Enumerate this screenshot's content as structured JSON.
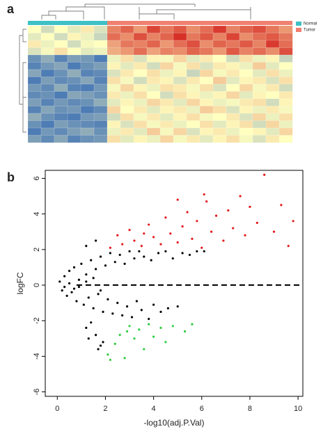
{
  "chart_data": [
    {
      "type": "heatmap",
      "label": "a",
      "colors": [
        "#4575b4",
        "#ffffbf",
        "#d73027"
      ],
      "limits": [
        -2,
        2
      ],
      "groups": [
        {
          "name": "Normal",
          "color": "#3ec1c4",
          "columns": 6
        },
        {
          "name": "Tumor",
          "color": "#f08070",
          "columns": 14
        }
      ],
      "values": [
        [
          0,
          -0.5,
          0,
          -0.3,
          0.2,
          -0.4,
          1.2,
          1.5,
          1.0,
          1.8,
          1.3,
          1.6,
          1.1,
          1.4,
          1.9,
          1.2,
          1.5,
          1.7,
          1.3,
          1.0
        ],
        [
          -0.3,
          0,
          -0.5,
          0.1,
          -0.2,
          -0.6,
          1.4,
          1.1,
          1.7,
          1.2,
          1.5,
          2.0,
          1.3,
          1.6,
          1.2,
          1.8,
          1.1,
          1.4,
          1.6,
          1.3
        ],
        [
          0.2,
          -0.2,
          0,
          -0.5,
          -0.1,
          0,
          0.9,
          1.3,
          1.2,
          1.5,
          1.0,
          1.4,
          1.7,
          1.1,
          1.5,
          1.3,
          1.6,
          1.2,
          1.9,
          1.4
        ],
        [
          -0.4,
          -0.1,
          0.3,
          0,
          -0.3,
          -0.2,
          0.8,
          1.0,
          1.4,
          0.9,
          1.2,
          1.1,
          1.5,
          1.3,
          1.0,
          1.6,
          1.2,
          1.4,
          1.1,
          1.7
        ],
        [
          -1.6,
          -1.2,
          -1.8,
          -1.4,
          -1.5,
          -1.9,
          -0.2,
          0.3,
          -0.4,
          0.1,
          -0.1,
          0.4,
          -0.3,
          0.2,
          0,
          -0.5,
          0.3,
          -0.2,
          0.1,
          -0.6
        ],
        [
          -1.8,
          -1.5,
          -1.3,
          -1.9,
          -1.6,
          -1.4,
          0.1,
          -0.3,
          0.2,
          -0.5,
          0.4,
          -0.1,
          0.3,
          -0.4,
          0.2,
          0.1,
          -0.2,
          0.5,
          -0.3,
          0
        ],
        [
          -1.3,
          -1.9,
          -1.6,
          -1.2,
          -1.8,
          -1.7,
          -0.4,
          0.2,
          0,
          0.3,
          -0.2,
          0.1,
          -0.6,
          0.4,
          -0.1,
          0.2,
          0,
          -0.3,
          0.3,
          -0.2
        ],
        [
          -1.9,
          -1.4,
          -1.7,
          -1.6,
          -1.3,
          -1.8,
          0.3,
          -0.1,
          -0.5,
          0.2,
          0.1,
          -0.4,
          0.2,
          0,
          0.5,
          -0.3,
          0.1,
          0.2,
          -0.4,
          0.3
        ],
        [
          -1.5,
          -1.7,
          -1.2,
          -1.8,
          -1.9,
          -1.5,
          -0.1,
          0.4,
          0.1,
          -0.2,
          0.3,
          0.2,
          -0.1,
          0.3,
          -0.4,
          0,
          0.4,
          -0.1,
          0.2,
          -0.5
        ],
        [
          -1.7,
          -1.6,
          -1.9,
          -1.3,
          -1.4,
          -1.6,
          0.2,
          -0.2,
          0.3,
          0,
          -0.5,
          0.3,
          0.1,
          -0.2,
          0.1,
          0.4,
          -0.3,
          0.1,
          0,
          0.2
        ],
        [
          -1.4,
          -1.8,
          -1.5,
          -1.7,
          -1.6,
          -1.2,
          -0.3,
          0.1,
          -0.2,
          0.4,
          0.2,
          -0.3,
          0.4,
          0.1,
          -0.2,
          -0.1,
          0.2,
          0.3,
          -0.5,
          0.1
        ],
        [
          -1.8,
          -1.3,
          -1.6,
          -1.5,
          -1.9,
          -1.7,
          0.4,
          0,
          0.2,
          -0.3,
          0.1,
          0.2,
          -0.2,
          0.5,
          0.3,
          -0.4,
          0.1,
          -0.2,
          0.2,
          -0.1
        ],
        [
          -1.2,
          -1.6,
          -1.8,
          -1.9,
          -1.5,
          -1.4,
          -0.5,
          0.3,
          -0.1,
          0.2,
          -0.3,
          0.1,
          0.3,
          -0.1,
          0,
          0.2,
          -0.4,
          0.4,
          -0.2,
          0.3
        ],
        [
          -1.6,
          -1.9,
          -1.4,
          -1.6,
          -1.7,
          -1.8,
          0.1,
          -0.4,
          0.3,
          -0.1,
          0.2,
          -0.2,
          0,
          0.3,
          -0.3,
          0.1,
          0.3,
          -0.5,
          0.4,
          -0.2
        ],
        [
          -1.9,
          -1.5,
          -1.7,
          -1.4,
          -1.2,
          -1.6,
          -0.2,
          0.2,
          -0.3,
          0.5,
          -0.1,
          0.4,
          -0.4,
          0.1,
          0.2,
          -0.2,
          0,
          0.1,
          -0.3,
          0.4
        ],
        [
          -1.4,
          -1.7,
          -1.3,
          -1.8,
          -1.6,
          -1.5,
          0.3,
          -0.3,
          0.1,
          -0.2,
          0.4,
          -0.1,
          0.2,
          -0.3,
          0.1,
          0.3,
          -0.1,
          -0.4,
          0.2,
          0
        ]
      ]
    },
    {
      "type": "scatter",
      "label": "b",
      "xlabel": "-log10(adj.P.Val)",
      "ylabel": "logFC",
      "xlim": [
        -0.5,
        10.2
      ],
      "ylim": [
        -6.25,
        6.45
      ],
      "xticks": [
        0,
        2,
        4,
        6,
        8,
        10
      ],
      "yticks": [
        -6,
        -4,
        -2,
        0,
        2,
        4,
        6
      ],
      "hline": 0,
      "series": [
        {
          "color": "#000000",
          "x": [
            0.1,
            0.2,
            0.3,
            0.4,
            0.5,
            0.6,
            0.7,
            0.8,
            0.9,
            1.0,
            1.1,
            1.2,
            1.3,
            1.4,
            1.5,
            1.6,
            1.7,
            1.8,
            1.9,
            2.0,
            2.1,
            2.2,
            2.3,
            2.4,
            2.5,
            2.6,
            2.7,
            2.8,
            2.9,
            3.0,
            3.1,
            3.2,
            3.3,
            3.4,
            3.5,
            3.6,
            3.8,
            3.9,
            4.0,
            4.2,
            4.3,
            4.5,
            4.6,
            4.8,
            5.0,
            5.2,
            5.5,
            5.8,
            6.1,
            0.3,
            0.5,
            0.7,
            0.9,
            1.2,
            1.5,
            1.8,
            1.4,
            1.6,
            1.9,
            1.2,
            1.3,
            1.7,
            1.8,
            1.2,
            1.6
          ],
          "y": [
            0.2,
            -0.3,
            0.5,
            -0.6,
            0.8,
            -0.4,
            1.0,
            -0.9,
            0.3,
            1.2,
            -1.1,
            0.6,
            -0.7,
            1.4,
            -1.3,
            0.9,
            -0.5,
            1.6,
            -1.5,
            1.1,
            -0.8,
            1.8,
            -1.6,
            1.3,
            -1.0,
            1.7,
            -1.7,
            1.2,
            -1.2,
            1.9,
            -1.8,
            1.5,
            -0.9,
            1.9,
            -1.4,
            1.6,
            -1.9,
            1.4,
            -1.1,
            1.8,
            -1.5,
            1.9,
            -1.3,
            1.5,
            -1.2,
            1.8,
            1.7,
            1.9,
            1.9,
            -0.1,
            0.1,
            -0.2,
            -0.1,
            0.2,
            0.4,
            -0.3,
            -2.1,
            -2.8,
            -3.2,
            -2.4,
            -3.0,
            -3.6,
            -3.4,
            2.2,
            2.5
          ]
        },
        {
          "color": "#e41a1c",
          "x": [
            2.2,
            2.5,
            2.7,
            3.0,
            3.2,
            3.5,
            3.8,
            4.0,
            4.3,
            4.5,
            4.7,
            5.0,
            5.2,
            5.4,
            5.6,
            5.8,
            6.0,
            6.2,
            6.4,
            6.6,
            6.9,
            7.1,
            7.3,
            7.6,
            7.8,
            8.0,
            8.3,
            8.6,
            9.0,
            9.3,
            9.6,
            9.8,
            6.1,
            5.0,
            3.6
          ],
          "y": [
            2.1,
            2.8,
            2.3,
            3.1,
            2.5,
            2.2,
            3.4,
            2.7,
            2.3,
            3.8,
            2.9,
            2.4,
            3.3,
            4.1,
            2.6,
            3.6,
            2.1,
            4.7,
            3.0,
            3.9,
            2.5,
            4.2,
            3.2,
            5.0,
            2.8,
            4.4,
            3.5,
            6.2,
            3.0,
            4.5,
            2.2,
            3.6,
            5.1,
            4.8,
            2.9
          ]
        },
        {
          "color": "#2ecc40",
          "x": [
            2.1,
            2.2,
            2.4,
            2.6,
            2.8,
            3.0,
            3.2,
            3.4,
            3.6,
            3.8,
            4.0,
            4.3,
            4.5,
            4.8,
            5.3,
            5.6,
            2.9
          ],
          "y": [
            -3.9,
            -4.2,
            -3.3,
            -2.8,
            -4.1,
            -2.3,
            -3.0,
            -2.5,
            -3.6,
            -2.2,
            -2.9,
            -2.4,
            -3.2,
            -2.3,
            -2.6,
            -2.2,
            -2.6
          ]
        }
      ]
    }
  ]
}
